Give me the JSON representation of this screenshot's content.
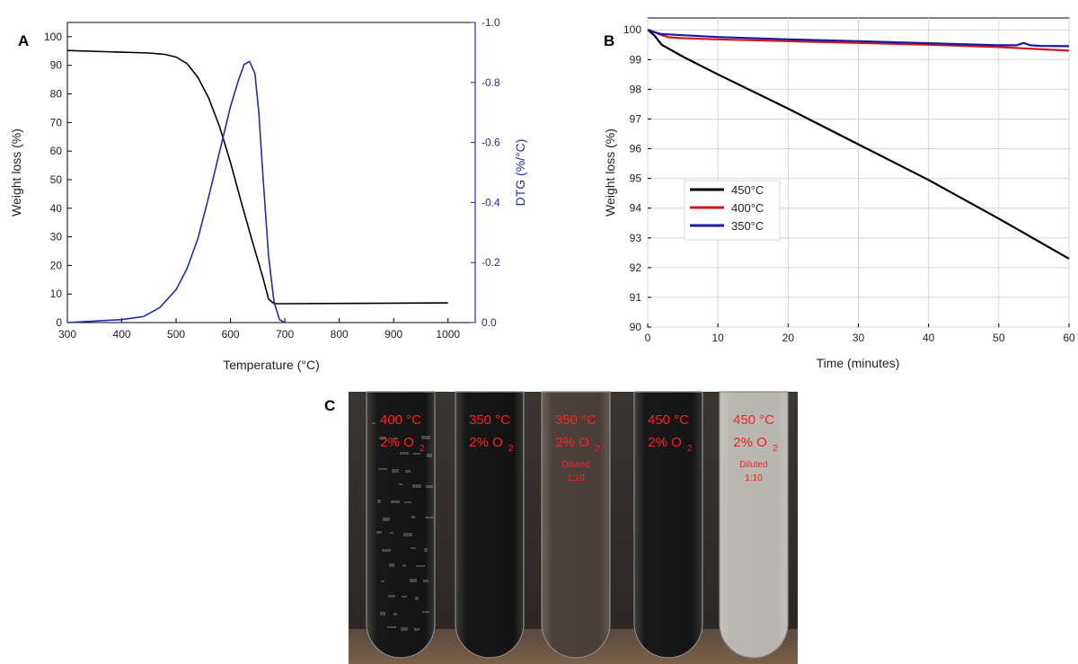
{
  "panels": {
    "a": "A",
    "b": "B",
    "c": "C"
  },
  "chart_data": [
    {
      "type": "line",
      "panel": "A",
      "xlabel": "Temperature (°C)",
      "ylabel": "Weight loss (%)",
      "y2label": "DTG (%/°C)",
      "xlim": [
        300,
        1050
      ],
      "ylim": [
        0,
        105
      ],
      "y2lim": [
        0,
        -1.0
      ],
      "y2_inverted": true,
      "x_ticks": [
        "300",
        "400",
        "500",
        "600",
        "700",
        "800",
        "900",
        "1000"
      ],
      "y_ticks": [
        "0",
        "10",
        "20",
        "30",
        "40",
        "50",
        "60",
        "70",
        "80",
        "90",
        "100"
      ],
      "y2_ticks": [
        "0.0",
        "-0.2",
        "-0.4",
        "-0.6",
        "-0.8",
        "-1.0"
      ],
      "grid": false,
      "series": [
        {
          "axis": "left",
          "color": "#000000",
          "x": [
            300,
            400,
            450,
            480,
            500,
            520,
            540,
            560,
            580,
            600,
            620,
            640,
            660,
            670,
            680,
            700,
            800,
            900,
            1000
          ],
          "y": [
            95.2,
            94.6,
            94.3,
            93.8,
            92.9,
            90.6,
            85.8,
            78.5,
            68.5,
            56.0,
            42.0,
            28.5,
            15.5,
            8.2,
            6.6,
            6.6,
            6.7,
            6.8,
            6.9
          ]
        },
        {
          "axis": "right",
          "color": "#1f2fa8",
          "x": [
            300,
            350,
            400,
            440,
            470,
            500,
            520,
            540,
            560,
            580,
            600,
            615,
            625,
            635,
            645,
            652,
            660,
            670,
            680,
            690,
            700
          ],
          "y": [
            0.0,
            -0.005,
            -0.01,
            -0.02,
            -0.05,
            -0.11,
            -0.18,
            -0.28,
            -0.42,
            -0.57,
            -0.72,
            -0.81,
            -0.86,
            -0.87,
            -0.83,
            -0.7,
            -0.48,
            -0.22,
            -0.07,
            -0.01,
            0.0
          ]
        }
      ]
    },
    {
      "type": "line",
      "panel": "B",
      "xlabel": "Time (minutes)",
      "ylabel": "Weight loss (%)",
      "xlim": [
        0,
        60
      ],
      "ylim": [
        90,
        100.4
      ],
      "x_ticks": [
        "0",
        "10",
        "20",
        "30",
        "40",
        "50",
        "60"
      ],
      "y_ticks": [
        "90",
        "91",
        "92",
        "93",
        "94",
        "95",
        "96",
        "97",
        "98",
        "99",
        "100"
      ],
      "grid": true,
      "legend": "middle-left",
      "series": [
        {
          "name": "450°C",
          "color": "#000000",
          "x": [
            0,
            1,
            2,
            5,
            10,
            20,
            30,
            40,
            50,
            60
          ],
          "y": [
            100.0,
            99.8,
            99.5,
            99.1,
            98.5,
            97.35,
            96.15,
            94.95,
            93.65,
            92.3
          ]
        },
        {
          "name": "400°C",
          "color": "#d01818",
          "x": [
            0,
            1,
            2,
            3,
            5,
            10,
            20,
            30,
            40,
            50,
            60
          ],
          "y": [
            100.0,
            99.92,
            99.82,
            99.75,
            99.72,
            99.68,
            99.62,
            99.56,
            99.5,
            99.42,
            99.3
          ]
        },
        {
          "name": "350°C",
          "color": "#1a1aa8",
          "x": [
            0,
            1,
            2,
            5,
            10,
            20,
            30,
            40,
            50,
            52.5,
            53.5,
            54.5,
            56,
            60
          ],
          "y": [
            100.0,
            99.92,
            99.86,
            99.82,
            99.76,
            99.68,
            99.62,
            99.55,
            99.48,
            99.48,
            99.56,
            99.48,
            99.46,
            99.45
          ]
        }
      ]
    }
  ],
  "photo": {
    "tubes": [
      {
        "temp": "400 °C",
        "gas": "2% O",
        "sub": "2",
        "note1": "",
        "note2": "",
        "liquid": "#141414",
        "flakes": true
      },
      {
        "temp": "350 °C",
        "gas": "2% O",
        "sub": "2",
        "note1": "",
        "note2": "",
        "liquid": "#131313",
        "flakes": false
      },
      {
        "temp": "350 °C",
        "gas": "2% O",
        "sub": "2",
        "note1": "Diluted",
        "note2": "1:10",
        "liquid": "#4a3f38",
        "flakes": false
      },
      {
        "temp": "450 °C",
        "gas": "2% O",
        "sub": "2",
        "note1": "",
        "note2": "",
        "liquid": "#151414",
        "flakes": false
      },
      {
        "temp": "450 °C",
        "gas": "2% O",
        "sub": "2",
        "note1": "Diluted",
        "note2": "1:10",
        "liquid": "#b8b6b0",
        "flakes": false
      }
    ]
  }
}
